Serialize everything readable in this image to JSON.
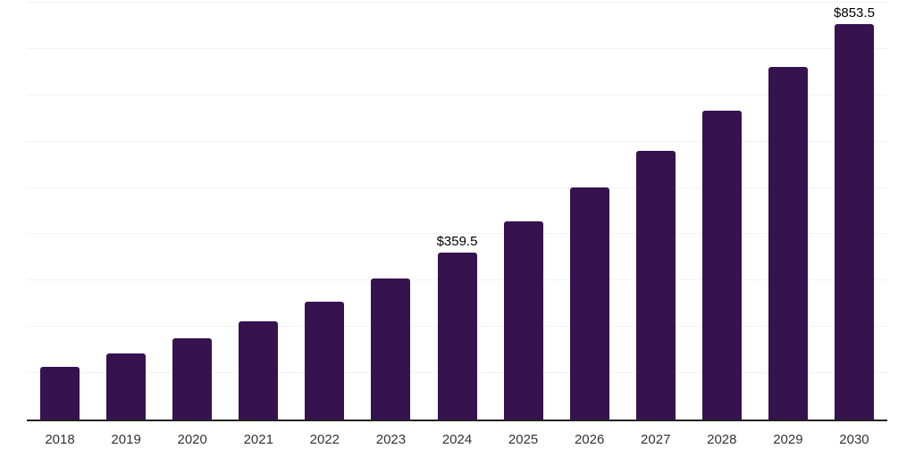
{
  "chart_data": {
    "type": "bar",
    "title": "",
    "xlabel": "",
    "ylabel": "",
    "categories": [
      "2018",
      "2019",
      "2020",
      "2021",
      "2022",
      "2023",
      "2024",
      "2025",
      "2026",
      "2027",
      "2028",
      "2029",
      "2030"
    ],
    "values": [
      113.5,
      143.0,
      175.5,
      212.0,
      254.5,
      305.0,
      359.5,
      427.0,
      501.0,
      580.5,
      667.0,
      761.0,
      853.5
    ],
    "value_labels": {
      "2024": "$359.5",
      "2030": "$853.5"
    },
    "ylim": [
      0,
      900
    ],
    "grid_step": 100,
    "grid": true,
    "legend": false,
    "y_axis_labels_visible": false,
    "bar_color": "#36124e"
  },
  "colors": {
    "bar": "#36124e",
    "gridline": "#f2f2f2",
    "axis_line": "#222222",
    "tick_label": "#333333",
    "value_label": "#000000",
    "background": "#ffffff"
  }
}
